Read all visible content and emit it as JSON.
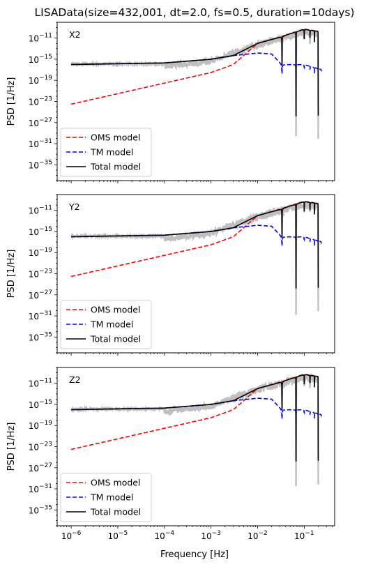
{
  "figure": {
    "title": "LISAData(size=432,001, dt=2.0, fs=0.5, duration=10days)",
    "xlabel": "Frequency [Hz]"
  },
  "colors": {
    "oms": "#ff0000",
    "tm": "#0000ff",
    "total": "#000000",
    "data": "#bfbfbf"
  },
  "chart_data": [
    {
      "type": "line",
      "panel_label": "X2",
      "ylabel": "PSD [1/Hz]",
      "xscale": "log",
      "yscale": "log",
      "xlim": [
        5e-07,
        0.45
      ],
      "ylim": [
        1e-38,
        1e-08
      ],
      "x_ticks": [
        "10^-6",
        "10^-5",
        "10^-4",
        "10^-3",
        "10^-2",
        "10^-1"
      ],
      "y_ticks": [
        "10^-11",
        "10^-15",
        "10^-19",
        "10^-23",
        "10^-27",
        "10^-31",
        "10^-35"
      ],
      "legend": {
        "placement": "lower-left",
        "entries": [
          "OMS model",
          "TM model",
          "Total model"
        ]
      },
      "series": [
        {
          "name": "OMS model",
          "style": "dashed",
          "points": [
            [
              1e-06,
              3e-24
            ],
            [
              1e-05,
              3e-22
            ],
            [
              0.0001,
              3e-20
            ],
            [
              0.001,
              3e-18
            ],
            [
              0.003,
              1e-16
            ],
            [
              0.01,
              1e-12
            ],
            [
              0.025,
              1e-11
            ],
            [
              0.1,
              5e-10
            ],
            [
              0.2,
              2e-10
            ]
          ]
        },
        {
          "name": "TM model",
          "style": "dashed",
          "points": [
            [
              1e-06,
              1e-16
            ],
            [
              1e-05,
              1.5e-16
            ],
            [
              0.0001,
              2e-16
            ],
            [
              0.001,
              1e-15
            ],
            [
              0.003,
              5e-15
            ],
            [
              0.01,
              1.5e-14
            ],
            [
              0.02,
              1e-14
            ],
            [
              0.0333,
              1e-16
            ],
            [
              0.1,
              1e-16
            ],
            [
              0.25,
              1e-17
            ]
          ]
        },
        {
          "name": "Total model",
          "style": "solid",
          "points": [
            [
              1e-06,
              1e-16
            ],
            [
              0.0001,
              2e-16
            ],
            [
              0.001,
              1e-15
            ],
            [
              0.003,
              5e-15
            ],
            [
              0.01,
              1e-12
            ],
            [
              0.025,
              1e-11
            ],
            [
              0.1,
              5e-10
            ],
            [
              0.2,
              2e-10
            ]
          ]
        },
        {
          "name": "",
          "style": "data",
          "points": [
            [
              1e-06,
              1e-16
            ],
            [
              0.0001,
              1e-16
            ],
            [
              0.001,
              1e-15
            ],
            [
              0.01,
              2e-12
            ],
            [
              0.1,
              5e-10
            ],
            [
              0.2,
              2e-10
            ]
          ]
        }
      ]
    },
    {
      "type": "line",
      "panel_label": "Y2",
      "ylabel": "PSD [1/Hz]",
      "xscale": "log",
      "yscale": "log",
      "xlim": [
        5e-07,
        0.45
      ],
      "ylim": [
        1e-38,
        1e-08
      ],
      "x_ticks": [
        "10^-6",
        "10^-5",
        "10^-4",
        "10^-3",
        "10^-2",
        "10^-1"
      ],
      "y_ticks": [
        "10^-11",
        "10^-15",
        "10^-19",
        "10^-23",
        "10^-27",
        "10^-31",
        "10^-35"
      ],
      "legend": {
        "placement": "lower-left",
        "entries": [
          "OMS model",
          "TM model",
          "Total model"
        ]
      },
      "series": [
        {
          "name": "OMS model",
          "style": "dashed",
          "points": [
            [
              1e-06,
              3e-24
            ],
            [
              1e-05,
              3e-22
            ],
            [
              0.0001,
              3e-20
            ],
            [
              0.001,
              3e-18
            ],
            [
              0.003,
              1e-16
            ],
            [
              0.01,
              1e-12
            ],
            [
              0.025,
              1e-11
            ],
            [
              0.1,
              5e-10
            ],
            [
              0.2,
              2e-10
            ]
          ]
        },
        {
          "name": "TM model",
          "style": "dashed",
          "points": [
            [
              1e-06,
              1e-16
            ],
            [
              1e-05,
              1.5e-16
            ],
            [
              0.0001,
              2e-16
            ],
            [
              0.001,
              1e-15
            ],
            [
              0.003,
              5e-15
            ],
            [
              0.01,
              1.5e-14
            ],
            [
              0.02,
              1e-14
            ],
            [
              0.0333,
              1e-16
            ],
            [
              0.1,
              1e-16
            ],
            [
              0.25,
              1e-17
            ]
          ]
        },
        {
          "name": "Total model",
          "style": "solid",
          "points": [
            [
              1e-06,
              1e-16
            ],
            [
              0.0001,
              2e-16
            ],
            [
              0.001,
              1e-15
            ],
            [
              0.003,
              5e-15
            ],
            [
              0.01,
              1e-12
            ],
            [
              0.025,
              1e-11
            ],
            [
              0.1,
              5e-10
            ],
            [
              0.2,
              2e-10
            ]
          ]
        },
        {
          "name": "",
          "style": "data",
          "points": [
            [
              1e-06,
              1e-16
            ],
            [
              0.0001,
              1e-16
            ],
            [
              0.001,
              1e-15
            ],
            [
              0.01,
              2e-12
            ],
            [
              0.1,
              5e-10
            ],
            [
              0.2,
              2e-10
            ]
          ]
        }
      ]
    },
    {
      "type": "line",
      "panel_label": "Z2",
      "ylabel": "PSD [1/Hz]",
      "xscale": "log",
      "yscale": "log",
      "xlim": [
        5e-07,
        0.45
      ],
      "ylim": [
        1e-38,
        1e-08
      ],
      "x_ticks": [
        "10^-6",
        "10^-5",
        "10^-4",
        "10^-3",
        "10^-2",
        "10^-1"
      ],
      "y_ticks": [
        "10^-11",
        "10^-15",
        "10^-19",
        "10^-23",
        "10^-27",
        "10^-31",
        "10^-35"
      ],
      "legend": {
        "placement": "lower-left",
        "entries": [
          "OMS model",
          "TM model",
          "Total model"
        ]
      },
      "series": [
        {
          "name": "OMS model",
          "style": "dashed",
          "points": [
            [
              1e-06,
              3e-24
            ],
            [
              1e-05,
              3e-22
            ],
            [
              0.0001,
              3e-20
            ],
            [
              0.001,
              3e-18
            ],
            [
              0.003,
              1e-16
            ],
            [
              0.01,
              1e-12
            ],
            [
              0.025,
              1e-11
            ],
            [
              0.1,
              5e-10
            ],
            [
              0.2,
              2e-10
            ]
          ]
        },
        {
          "name": "TM model",
          "style": "dashed",
          "points": [
            [
              1e-06,
              1e-16
            ],
            [
              1e-05,
              1.5e-16
            ],
            [
              0.0001,
              2e-16
            ],
            [
              0.001,
              1e-15
            ],
            [
              0.003,
              5e-15
            ],
            [
              0.01,
              1.5e-14
            ],
            [
              0.02,
              1e-14
            ],
            [
              0.0333,
              1e-16
            ],
            [
              0.1,
              1e-16
            ],
            [
              0.25,
              1e-17
            ]
          ]
        },
        {
          "name": "Total model",
          "style": "solid",
          "points": [
            [
              1e-06,
              1e-16
            ],
            [
              0.0001,
              2e-16
            ],
            [
              0.001,
              1e-15
            ],
            [
              0.003,
              5e-15
            ],
            [
              0.01,
              1e-12
            ],
            [
              0.025,
              1e-11
            ],
            [
              0.1,
              5e-10
            ],
            [
              0.2,
              2e-10
            ]
          ]
        },
        {
          "name": "",
          "style": "data",
          "points": [
            [
              1e-06,
              1e-16
            ],
            [
              0.0001,
              1e-16
            ],
            [
              0.001,
              1e-15
            ],
            [
              0.01,
              2e-12
            ],
            [
              0.1,
              5e-10
            ],
            [
              0.2,
              2e-10
            ]
          ]
        }
      ]
    }
  ]
}
